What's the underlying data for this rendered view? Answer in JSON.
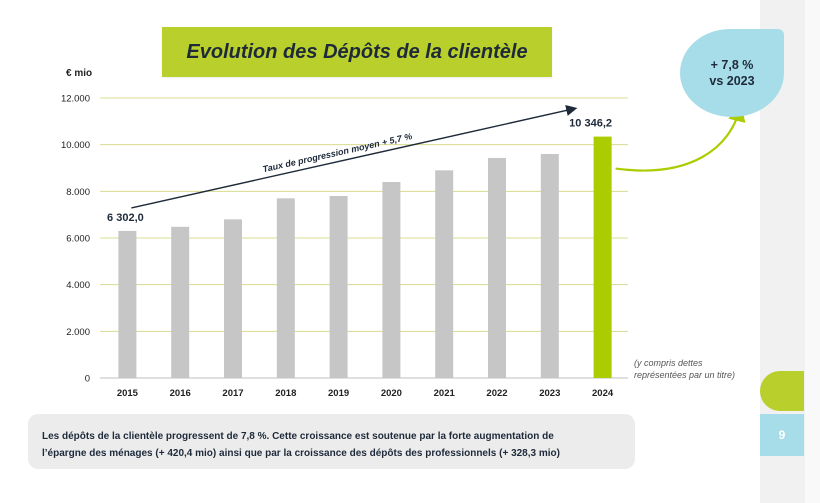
{
  "title": "Evolution des Dépôts de la clientèle",
  "unit": "€ mio",
  "colors": {
    "bar_gray": "#c6c6c6",
    "bar_highlight": "#aacc00",
    "accent_green": "#b9cf2b",
    "accent_blue": "#a6dde8",
    "grid": "#d8dc8f",
    "text_dark": "#1e2a3a"
  },
  "chart_data": {
    "type": "bar",
    "title": "Evolution des Dépôts de la clientèle",
    "xlabel": "",
    "ylabel": "€ mio",
    "categories": [
      "2015",
      "2016",
      "2017",
      "2018",
      "2019",
      "2020",
      "2021",
      "2022",
      "2023",
      "2024"
    ],
    "values": [
      6302.0,
      6480,
      6800,
      7700,
      7800,
      8400,
      8900,
      9430,
      9600,
      10346.2
    ],
    "highlight_index": 9,
    "ylim": [
      0,
      12000
    ],
    "yticks": [
      0,
      2000,
      4000,
      6000,
      8000,
      10000,
      12000
    ],
    "ytick_labels": [
      "0",
      "2.000",
      "4.000",
      "6.000",
      "8.000",
      "10.000",
      "12.000"
    ],
    "grid": true,
    "data_labels": [
      {
        "index": 0,
        "text": "6 302,0"
      },
      {
        "index": 9,
        "text": "10 346,2"
      }
    ],
    "trend": {
      "label": "Taux de progression moyen + 5,7 %",
      "from_index": 0,
      "to_index": 9
    }
  },
  "bubble": {
    "line1": "+ 7,8 %",
    "line2": "vs 2023"
  },
  "note": "(y compris dettes représentées par un titre)",
  "page_number": "9",
  "summary": {
    "line1": "Les dépôts de la clientèle progressent de 7,8 %. Cette croissance est soutenue par la forte augmentation de",
    "line2": "l’épargne des ménages (+ 420,4 mio)  ainsi que par la croissance des dépôts des professionnels (+ 328,3 mio)"
  }
}
